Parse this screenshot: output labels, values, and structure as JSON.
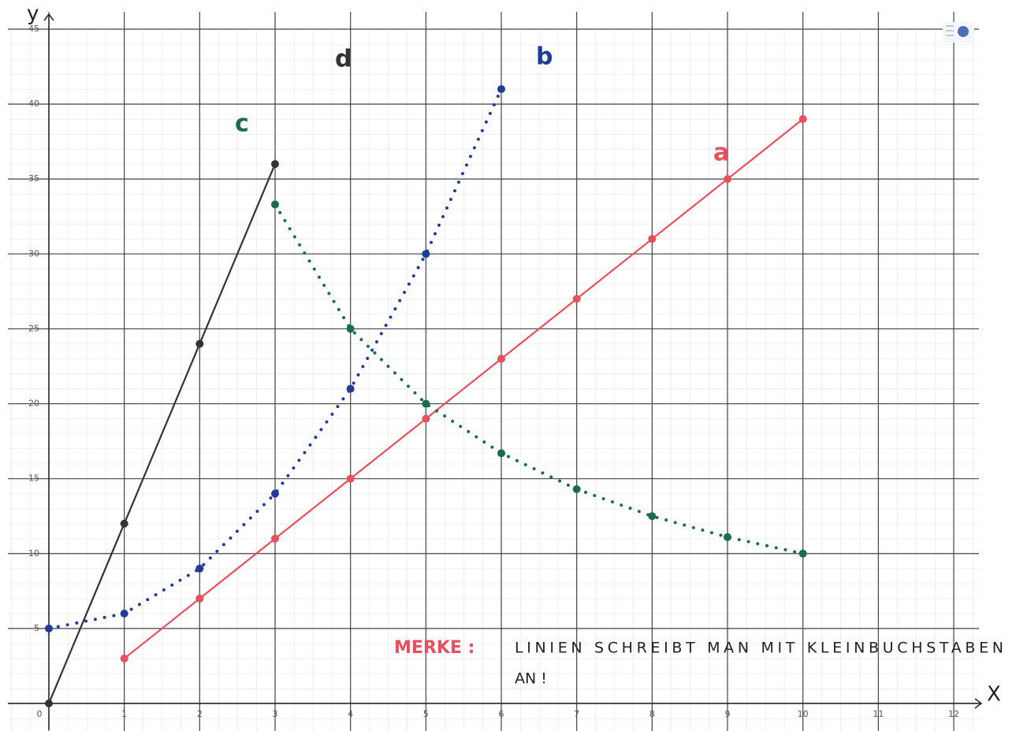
{
  "chart_data": {
    "type": "line",
    "x_label": "X",
    "y_label": "y",
    "xlim": [
      0,
      12
    ],
    "ylim": [
      0,
      45
    ],
    "xticks": [
      0,
      1,
      2,
      3,
      4,
      5,
      6,
      7,
      8,
      9,
      10,
      11,
      12
    ],
    "yticks": [
      0,
      5,
      10,
      15,
      20,
      25,
      30,
      35,
      40,
      45
    ],
    "grid": true,
    "series": [
      {
        "name": "a",
        "color": "#e8505b",
        "line_style": "solid",
        "x": [
          1,
          2,
          3,
          4,
          5,
          6,
          7,
          8,
          9,
          10
        ],
        "values": [
          3,
          7,
          11,
          15,
          19,
          23,
          27,
          31,
          35,
          39
        ]
      },
      {
        "name": "b",
        "color": "#1f3c99",
        "line_style": "dotted",
        "x": [
          0,
          1,
          2,
          3,
          4,
          5,
          6
        ],
        "values": [
          5,
          6,
          9,
          14,
          21,
          30,
          41
        ]
      },
      {
        "name": "c",
        "color": "#1a6b4f",
        "line_style": "dotted",
        "x": [
          3,
          4,
          5,
          6,
          7,
          8,
          9,
          10
        ],
        "values": [
          33.3,
          25,
          20,
          16.7,
          14.3,
          12.5,
          11.1,
          10
        ]
      },
      {
        "name": "d",
        "color": "#333333",
        "line_style": "solid",
        "x": [
          0,
          1,
          2,
          3
        ],
        "values": [
          0,
          12,
          24,
          36
        ]
      }
    ],
    "annotations": [
      "MERKE :",
      "LINIEN SCHREIBT MAN MIT KLEINBUCHSTABEN",
      "AN !"
    ]
  }
}
